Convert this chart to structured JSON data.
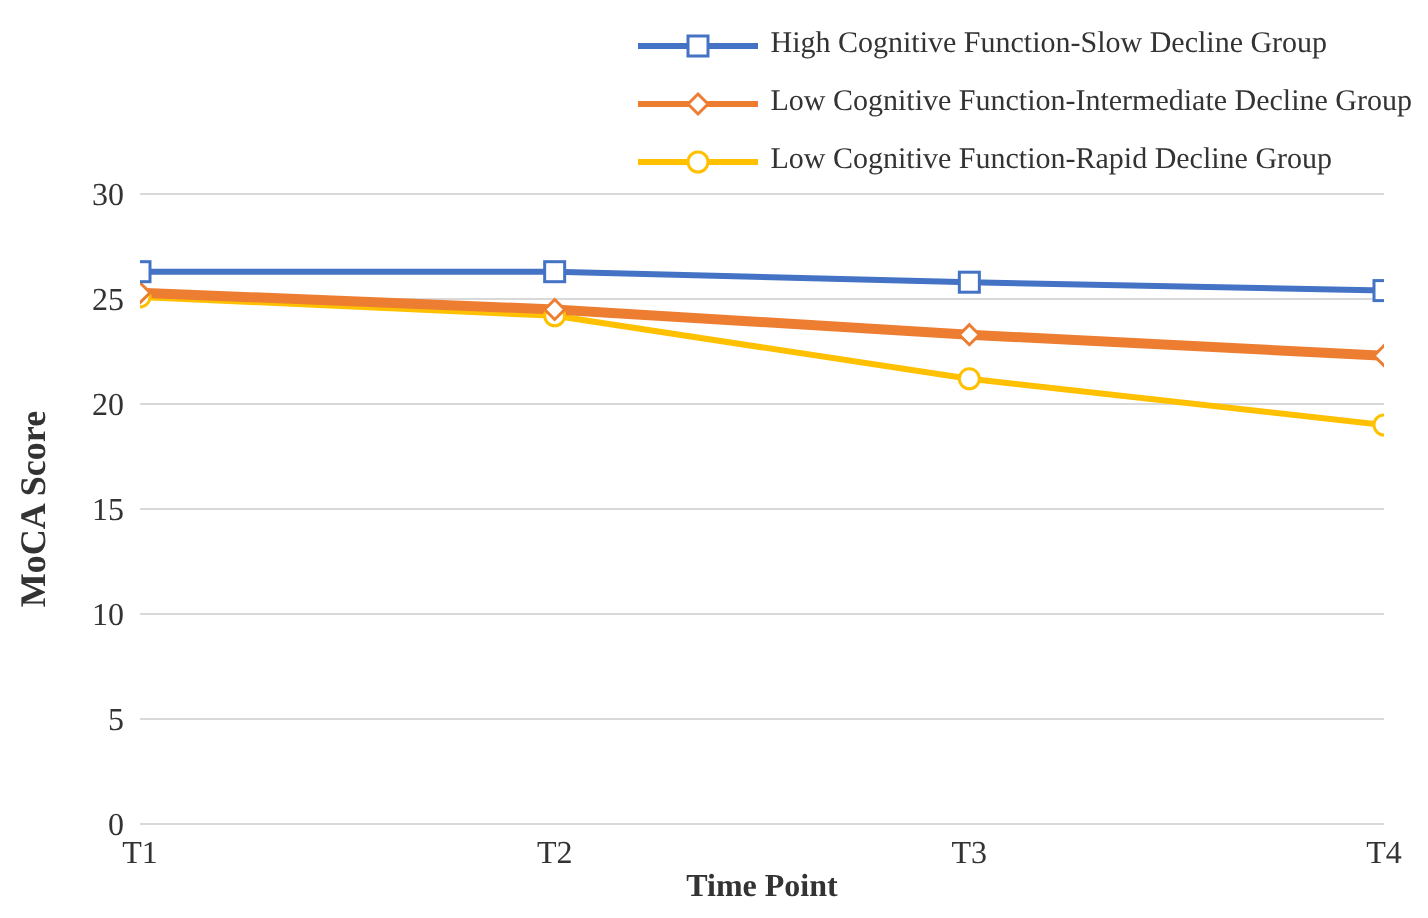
{
  "chart_data": {
    "type": "line",
    "xlabel": "Time Point",
    "ylabel": "MoCA Score",
    "categories": [
      "T1",
      "T2",
      "T3",
      "T4"
    ],
    "ylim": [
      0,
      30
    ],
    "yticks": [
      0,
      5,
      10,
      15,
      20,
      25,
      30
    ],
    "grid": "y",
    "legend": "top right",
    "line_style": "solid",
    "series": [
      {
        "name": "High Cognitive Function-Slow Decline Group",
        "color": "#4472c4",
        "marker": "square",
        "values": [
          26.3,
          26.3,
          25.8,
          25.4
        ]
      },
      {
        "name": "Low Cognitive Function-Intermediate Decline Group",
        "color": "#ed7d31",
        "marker": "diamond",
        "values": [
          25.3,
          24.5,
          23.3,
          22.3
        ]
      },
      {
        "name": "Low Cognitive Function-Rapid Decline Group",
        "color": "#ffc000",
        "marker": "circle",
        "values": [
          25.1,
          24.2,
          21.2,
          19.0
        ]
      }
    ]
  }
}
